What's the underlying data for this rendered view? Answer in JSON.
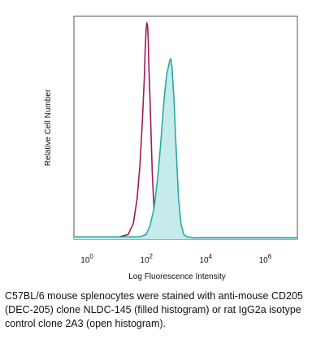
{
  "chart_data": {
    "type": "area",
    "title": "",
    "xlabel": "Log Fluorescence Intensity",
    "ylabel": "Relative Cell Number",
    "x_scale": "log",
    "xlim": [
      0.3,
      10000000
    ],
    "ylim": [
      0,
      100
    ],
    "x_ticks": [
      {
        "base": "10",
        "exp": "0",
        "value": 1
      },
      {
        "base": "10",
        "exp": "2",
        "value": 100
      },
      {
        "base": "10",
        "exp": "4",
        "value": 10000
      },
      {
        "base": "10",
        "exp": "6",
        "value": 1000000
      }
    ],
    "grid": false,
    "series": [
      {
        "style": "open",
        "color": "#a0195a",
        "x": [
          0.3,
          10,
          20,
          30,
          40,
          50,
          60,
          70,
          75,
          80,
          85,
          90,
          95,
          100,
          110,
          120,
          130,
          150,
          170,
          200,
          300,
          1000,
          100000,
          10000000
        ],
        "y": [
          1,
          1,
          2,
          7,
          18,
          33,
          52,
          72,
          85,
          93,
          97,
          96,
          90,
          78,
          62,
          45,
          30,
          12,
          4,
          1,
          0.5,
          0.5,
          0.5,
          0.5
        ]
      },
      {
        "style": "filled",
        "color": "#2aa9a6",
        "fill": "#c5ebeb",
        "x": [
          0.3,
          50,
          80,
          110,
          150,
          200,
          250,
          300,
          350,
          400,
          450,
          500,
          550,
          600,
          700,
          800,
          1000,
          1200,
          1500,
          2000,
          3000,
          100000,
          10000000
        ],
        "y": [
          1,
          1,
          2,
          6,
          14,
          28,
          43,
          57,
          67,
          74,
          77,
          80,
          81,
          77,
          63,
          45,
          18,
          7,
          2,
          1,
          0.5,
          0.5,
          0.5
        ]
      }
    ]
  },
  "caption": "C57BL/6 mouse splenocytes were stained with anti-mouse CD205 (DEC-205) clone NLDC-145 (filled histogram) or rat IgG2a isotype control clone 2A3 (open histogram)."
}
